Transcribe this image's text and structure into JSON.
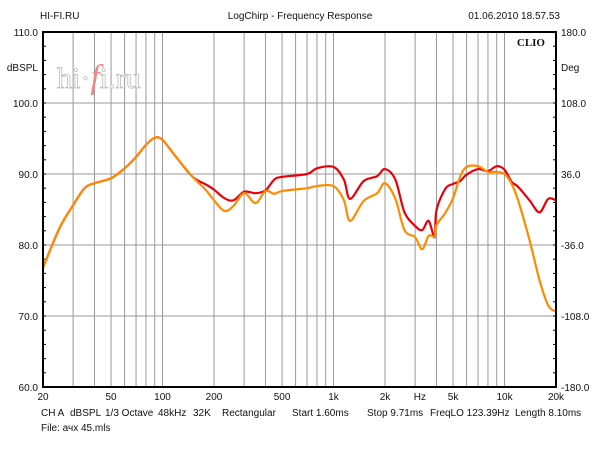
{
  "header": {
    "left": "HI-FI.RU",
    "title": "LogChirp - Frequency Response",
    "datetime": "01.06.2010 18.57.53"
  },
  "watermark": {
    "pre": "hi·",
    "f": "f",
    "post": "i.ru"
  },
  "brand": "CLIO",
  "footer": {
    "params": [
      "CH A",
      "dBSPL",
      "1/3 Octave",
      "48kHz",
      "32K",
      "Rectangular",
      "Start 1.60ms",
      "Stop 9.71ms",
      "FreqLO 123.39Hz",
      "Length 8.10ms"
    ],
    "file": "File: ачх 45.mls"
  },
  "colors": {
    "red": "#e8000b",
    "orange": "#ff8c00",
    "grid": "#888888"
  },
  "chart_data": {
    "type": "line",
    "title": "LogChirp - Frequency Response",
    "xlabel": "Hz",
    "ylabel": "dBSPL",
    "ylabel_right": "Deg",
    "xscale": "log",
    "xlim": [
      20,
      20000
    ],
    "ylim": [
      60,
      110
    ],
    "ylim_right": [
      -180,
      180
    ],
    "grid": true,
    "x_ticks": [
      20,
      50,
      100,
      200,
      500,
      1000,
      2000,
      5000,
      10000,
      20000
    ],
    "x_tick_labels": [
      "20",
      "50",
      "100",
      "200",
      "500",
      "1k",
      "2k",
      "5k",
      "10k",
      "20k"
    ],
    "x_unit_label": "Hz",
    "y_ticks": [
      60,
      70,
      80,
      90,
      100,
      110
    ],
    "y_tick_labels": [
      "60.0",
      "70.0",
      "80.0",
      "90.0",
      "100.0",
      "110.0"
    ],
    "y_right_tick_labels": [
      "-180.0",
      "-108.0",
      "-36.0",
      "36.0",
      "108.0",
      "180.0"
    ],
    "x": [
      20,
      25,
      30,
      35,
      40,
      50,
      60,
      70,
      80,
      90,
      100,
      120,
      150,
      180,
      200,
      230,
      260,
      300,
      350,
      400,
      450,
      500,
      700,
      800,
      1000,
      1150,
      1250,
      1500,
      1800,
      2000,
      2300,
      2600,
      3000,
      3300,
      3600,
      3900,
      4000,
      4500,
      5000,
      5500,
      6000,
      7000,
      8000,
      9000,
      10000,
      11000,
      12000,
      14000,
      16000,
      18000,
      20000
    ],
    "series": [
      {
        "name": "red",
        "color": "#e8000b",
        "values": [
          76.8,
          82.4,
          85.6,
          88,
          88.7,
          89.4,
          90.8,
          92.4,
          94.1,
          95.1,
          94.8,
          92.4,
          89.6,
          88.5,
          87.8,
          86.6,
          86.3,
          87.5,
          87.3,
          87.7,
          89.2,
          89.6,
          90,
          90.8,
          91,
          89.2,
          86.5,
          89,
          89.7,
          90.7,
          89.2,
          84.6,
          82.7,
          82.1,
          83.4,
          81.1,
          84.9,
          87.9,
          88.6,
          89,
          89.9,
          90.7,
          90.4,
          91.1,
          90.6,
          88.9,
          88.2,
          86.3,
          84.6,
          86.5,
          86.3
        ]
      },
      {
        "name": "orange",
        "color": "#ff8c00",
        "values": [
          76.8,
          82.4,
          85.6,
          88,
          88.7,
          89.4,
          90.8,
          92.4,
          94.1,
          95.1,
          94.8,
          92.4,
          89.6,
          87.7,
          86.3,
          84.8,
          85.5,
          87.3,
          85.9,
          87.6,
          87.2,
          87.6,
          88,
          88.3,
          88.3,
          86.3,
          83.4,
          86.2,
          87.3,
          88.7,
          86.5,
          82.1,
          81.1,
          79.4,
          81.3,
          81.2,
          82.8,
          84.5,
          86.6,
          89.6,
          91,
          91.1,
          90.3,
          90.3,
          90,
          88.6,
          86.3,
          80.7,
          75.1,
          71.5,
          70.6
        ]
      }
    ]
  }
}
